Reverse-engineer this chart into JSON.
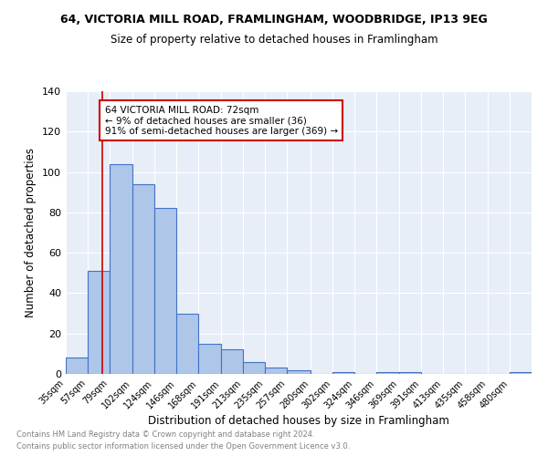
{
  "title1": "64, VICTORIA MILL ROAD, FRAMLINGHAM, WOODBRIDGE, IP13 9EG",
  "title2": "Size of property relative to detached houses in Framlingham",
  "xlabel": "Distribution of detached houses by size in Framlingham",
  "ylabel": "Number of detached properties",
  "categories": [
    "35sqm",
    "57sqm",
    "79sqm",
    "102sqm",
    "124sqm",
    "146sqm",
    "168sqm",
    "191sqm",
    "213sqm",
    "235sqm",
    "257sqm",
    "280sqm",
    "302sqm",
    "324sqm",
    "346sqm",
    "369sqm",
    "391sqm",
    "413sqm",
    "435sqm",
    "458sqm",
    "480sqm"
  ],
  "values": [
    8,
    51,
    104,
    94,
    82,
    30,
    15,
    12,
    6,
    3,
    2,
    0,
    1,
    0,
    1,
    1,
    0,
    0,
    0,
    0,
    1
  ],
  "bar_color": "#aec6e8",
  "bar_edge_color": "#4472c4",
  "bg_color": "#e8eef8",
  "grid_color": "#ffffff",
  "property_line_x": 72,
  "annotation_text": "64 VICTORIA MILL ROAD: 72sqm\n← 9% of detached houses are smaller (36)\n91% of semi-detached houses are larger (369) →",
  "annotation_box_color": "#ffffff",
  "annotation_box_edge": "#cc0000",
  "red_line_color": "#cc0000",
  "footnote1": "Contains HM Land Registry data © Crown copyright and database right 2024.",
  "footnote2": "Contains public sector information licensed under the Open Government Licence v3.0.",
  "ylim": [
    0,
    140
  ],
  "yticks": [
    0,
    20,
    40,
    60,
    80,
    100,
    120,
    140
  ],
  "label_vals": [
    35,
    57,
    79,
    102,
    124,
    146,
    168,
    191,
    213,
    235,
    257,
    280,
    302,
    324,
    346,
    369,
    391,
    413,
    435,
    458,
    480
  ]
}
